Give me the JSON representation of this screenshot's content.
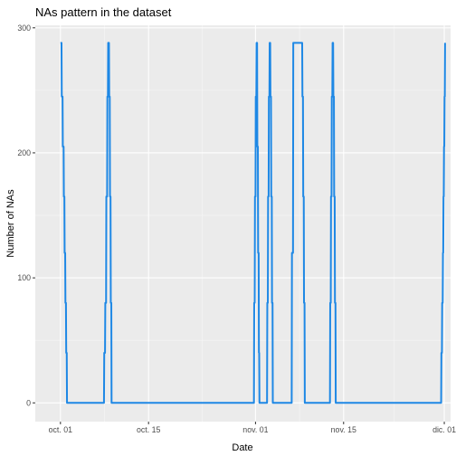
{
  "chart_data": {
    "type": "line",
    "title": "NAs pattern in the dataset",
    "xlabel": "Date",
    "ylabel": "Number of NAs",
    "x_type": "date",
    "xlim": [
      "2019-09-27",
      "2019-12-02"
    ],
    "ylim": [
      -15,
      302
    ],
    "grid": true,
    "legend": "none",
    "x_ticks": [
      {
        "value": "2019-10-01",
        "label": "oct. 01"
      },
      {
        "value": "2019-10-15",
        "label": "oct. 15"
      },
      {
        "value": "2019-11-01",
        "label": "nov. 01"
      },
      {
        "value": "2019-11-15",
        "label": "nov. 15"
      },
      {
        "value": "2019-12-01",
        "label": "dic. 01"
      }
    ],
    "y_ticks": [
      0,
      100,
      200,
      300
    ],
    "series": [
      {
        "color": "#1E88E5",
        "points": [
          [
            "2019-10-01T00:00",
            288
          ],
          [
            "2019-10-01T04:00",
            288
          ],
          [
            "2019-10-01T05:00",
            245
          ],
          [
            "2019-10-01T08:00",
            245
          ],
          [
            "2019-10-01T09:00",
            205
          ],
          [
            "2019-10-01T12:00",
            205
          ],
          [
            "2019-10-01T13:00",
            165
          ],
          [
            "2019-10-01T15:00",
            165
          ],
          [
            "2019-10-01T16:00",
            120
          ],
          [
            "2019-10-01T18:00",
            120
          ],
          [
            "2019-10-01T19:00",
            80
          ],
          [
            "2019-10-01T21:00",
            80
          ],
          [
            "2019-10-01T22:00",
            40
          ],
          [
            "2019-10-02T00:00",
            40
          ],
          [
            "2019-10-02T01:00",
            0
          ],
          [
            "2019-10-07T22:00",
            0
          ],
          [
            "2019-10-07T23:00",
            40
          ],
          [
            "2019-10-08T02:00",
            40
          ],
          [
            "2019-10-08T03:00",
            80
          ],
          [
            "2019-10-08T06:00",
            80
          ],
          [
            "2019-10-08T07:00",
            165
          ],
          [
            "2019-10-08T10:00",
            165
          ],
          [
            "2019-10-08T11:00",
            245
          ],
          [
            "2019-10-08T13:00",
            245
          ],
          [
            "2019-10-08T14:00",
            288
          ],
          [
            "2019-10-08T17:00",
            288
          ],
          [
            "2019-10-08T18:00",
            245
          ],
          [
            "2019-10-08T20:00",
            245
          ],
          [
            "2019-10-08T21:00",
            165
          ],
          [
            "2019-10-08T23:00",
            165
          ],
          [
            "2019-10-09T00:00",
            80
          ],
          [
            "2019-10-09T02:00",
            80
          ],
          [
            "2019-10-09T03:00",
            0
          ],
          [
            "2019-10-31T18:00",
            0
          ],
          [
            "2019-10-31T19:00",
            80
          ],
          [
            "2019-10-31T21:00",
            80
          ],
          [
            "2019-10-31T22:00",
            165
          ],
          [
            "2019-11-01T00:00",
            165
          ],
          [
            "2019-11-01T01:00",
            245
          ],
          [
            "2019-11-01T03:00",
            245
          ],
          [
            "2019-11-01T04:00",
            288
          ],
          [
            "2019-11-01T06:00",
            288
          ],
          [
            "2019-11-01T07:00",
            205
          ],
          [
            "2019-11-01T09:00",
            205
          ],
          [
            "2019-11-01T10:00",
            120
          ],
          [
            "2019-11-01T12:00",
            120
          ],
          [
            "2019-11-01T13:00",
            40
          ],
          [
            "2019-11-01T14:00",
            40
          ],
          [
            "2019-11-01T15:00",
            0
          ],
          [
            "2019-11-02T20:00",
            0
          ],
          [
            "2019-11-02T21:00",
            80
          ],
          [
            "2019-11-02T23:00",
            80
          ],
          [
            "2019-11-03T00:00",
            165
          ],
          [
            "2019-11-03T02:00",
            165
          ],
          [
            "2019-11-03T03:00",
            245
          ],
          [
            "2019-11-03T05:00",
            245
          ],
          [
            "2019-11-03T06:00",
            288
          ],
          [
            "2019-11-03T08:00",
            288
          ],
          [
            "2019-11-03T09:00",
            245
          ],
          [
            "2019-11-03T11:00",
            245
          ],
          [
            "2019-11-03T12:00",
            165
          ],
          [
            "2019-11-03T14:00",
            165
          ],
          [
            "2019-11-03T15:00",
            80
          ],
          [
            "2019-11-03T17:00",
            80
          ],
          [
            "2019-11-03T18:00",
            0
          ],
          [
            "2019-11-06T18:00",
            0
          ],
          [
            "2019-11-06T19:00",
            120
          ],
          [
            "2019-11-06T23:00",
            120
          ],
          [
            "2019-11-07T00:00",
            288
          ],
          [
            "2019-11-08T10:00",
            288
          ],
          [
            "2019-11-08T11:00",
            245
          ],
          [
            "2019-11-08T13:00",
            245
          ],
          [
            "2019-11-08T14:00",
            165
          ],
          [
            "2019-11-08T16:00",
            165
          ],
          [
            "2019-11-08T17:00",
            80
          ],
          [
            "2019-11-08T19:00",
            80
          ],
          [
            "2019-11-08T20:00",
            0
          ],
          [
            "2019-11-12T20:00",
            0
          ],
          [
            "2019-11-12T21:00",
            80
          ],
          [
            "2019-11-12T23:00",
            80
          ],
          [
            "2019-11-13T00:00",
            165
          ],
          [
            "2019-11-13T02:00",
            165
          ],
          [
            "2019-11-13T03:00",
            245
          ],
          [
            "2019-11-13T05:00",
            245
          ],
          [
            "2019-11-13T06:00",
            288
          ],
          [
            "2019-11-13T08:00",
            288
          ],
          [
            "2019-11-13T09:00",
            245
          ],
          [
            "2019-11-13T11:00",
            245
          ],
          [
            "2019-11-13T12:00",
            165
          ],
          [
            "2019-11-13T14:00",
            165
          ],
          [
            "2019-11-13T15:00",
            80
          ],
          [
            "2019-11-13T17:00",
            80
          ],
          [
            "2019-11-13T18:00",
            0
          ],
          [
            "2019-11-30T12:00",
            0
          ],
          [
            "2019-11-30T13:00",
            40
          ],
          [
            "2019-11-30T15:00",
            40
          ],
          [
            "2019-11-30T16:00",
            80
          ],
          [
            "2019-11-30T18:00",
            80
          ],
          [
            "2019-11-30T19:00",
            120
          ],
          [
            "2019-11-30T20:00",
            120
          ],
          [
            "2019-11-30T21:00",
            165
          ],
          [
            "2019-11-30T22:00",
            165
          ],
          [
            "2019-11-30T23:00",
            205
          ],
          [
            "2019-12-01T00:00",
            205
          ],
          [
            "2019-12-01T01:00",
            245
          ],
          [
            "2019-12-01T02:00",
            245
          ],
          [
            "2019-12-01T03:00",
            288
          ]
        ]
      }
    ]
  }
}
